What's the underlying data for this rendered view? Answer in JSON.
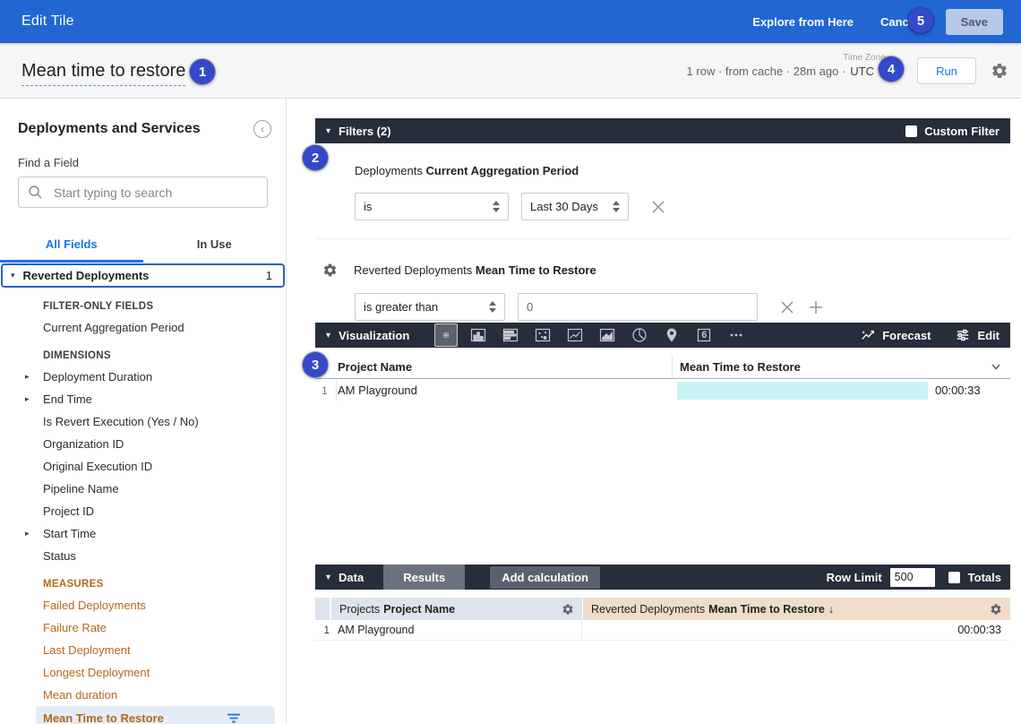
{
  "colors": {
    "topbar_blue": "#2166d3",
    "accent_blue": "#1a73e8",
    "dark_header": "#262d3b",
    "measure_orange": "#b2691c",
    "viz_bar_cyan": "#c9f4f5",
    "dimension_header_bg": "#dde4ed",
    "measure_header_bg": "#efddc9",
    "badge_blue": "#3448cb"
  },
  "topbar": {
    "title": "Edit Tile",
    "explore_label": "Explore from Here",
    "cancel_label": "Cancel",
    "save_label": "Save"
  },
  "titlebar": {
    "tile_title": "Mean time to restore",
    "query_stats": "1 row · from cache · 28m ago ·",
    "timezone_label": "Time Zone",
    "timezone_value": "UTC",
    "run_label": "Run"
  },
  "badges": {
    "one": "1",
    "two": "2",
    "three": "3",
    "four": "4",
    "five": "5"
  },
  "sidebar": {
    "title": "Deployments and Services",
    "find_a_field_label": "Find a Field",
    "search_placeholder": "Start typing to search",
    "tab_all_fields": "All Fields",
    "tab_in_use": "In Use",
    "group_label": "Reverted Deployments",
    "group_count": "1",
    "field_sections": [
      {
        "header": "FILTER-ONLY FIELDS",
        "type": "dimension",
        "items": [
          {
            "label": "Current Aggregation Period"
          }
        ]
      },
      {
        "header": "DIMENSIONS",
        "type": "dimension",
        "items": [
          {
            "label": "Deployment Duration",
            "expandable": true
          },
          {
            "label": "End Time",
            "expandable": true
          },
          {
            "label": "Is Revert Execution (Yes / No)"
          },
          {
            "label": "Organization ID"
          },
          {
            "label": "Original Execution ID"
          },
          {
            "label": "Pipeline Name"
          },
          {
            "label": "Project ID"
          },
          {
            "label": "Start Time",
            "expandable": true
          },
          {
            "label": "Status"
          }
        ]
      },
      {
        "header": "MEASURES",
        "type": "measure",
        "items": [
          {
            "label": "Failed Deployments"
          },
          {
            "label": "Failure Rate"
          },
          {
            "label": "Last Deployment"
          },
          {
            "label": "Longest Deployment"
          },
          {
            "label": "Mean duration"
          },
          {
            "label": "Mean Time to Restore",
            "selected": true,
            "filtered": true
          }
        ]
      }
    ]
  },
  "filters": {
    "header_label": "Filters (2)",
    "custom_filter_label": "Custom Filter",
    "rows": [
      {
        "scope": "Deployments",
        "field": "Current Aggregation Period",
        "operator": "is",
        "value": "Last 30 Days"
      },
      {
        "scope": "Reverted Deployments",
        "field": "Mean Time to Restore",
        "operator": "is greater than",
        "value": "0"
      }
    ]
  },
  "visualization": {
    "header_label": "Visualization",
    "icon_names": [
      "table",
      "column-chart",
      "bar-chart",
      "scatter",
      "line-chart",
      "area-chart",
      "pie-chart",
      "map",
      "single-value",
      "more"
    ],
    "selected_icon": "table",
    "single_value_glyph": "6",
    "forecast_label": "Forecast",
    "edit_label": "Edit",
    "table": {
      "col_project": "Project Name",
      "col_measure": "Mean Time to Restore",
      "row_index": "1",
      "row_project": "AM Playground",
      "row_value": "00:00:33"
    }
  },
  "data_panel": {
    "header_label": "Data",
    "results_tab_label": "Results",
    "add_calculation_label": "Add calculation",
    "row_limit_label": "Row Limit",
    "row_limit_value": "500",
    "totals_label": "Totals",
    "table": {
      "col1_scope": "Projects",
      "col1_field": "Project Name",
      "col2_scope": "Reverted Deployments",
      "col2_field": "Mean Time to Restore",
      "col2_sort": "↓",
      "row_index": "1",
      "row_project": "AM Playground",
      "row_value": "00:00:33"
    }
  }
}
